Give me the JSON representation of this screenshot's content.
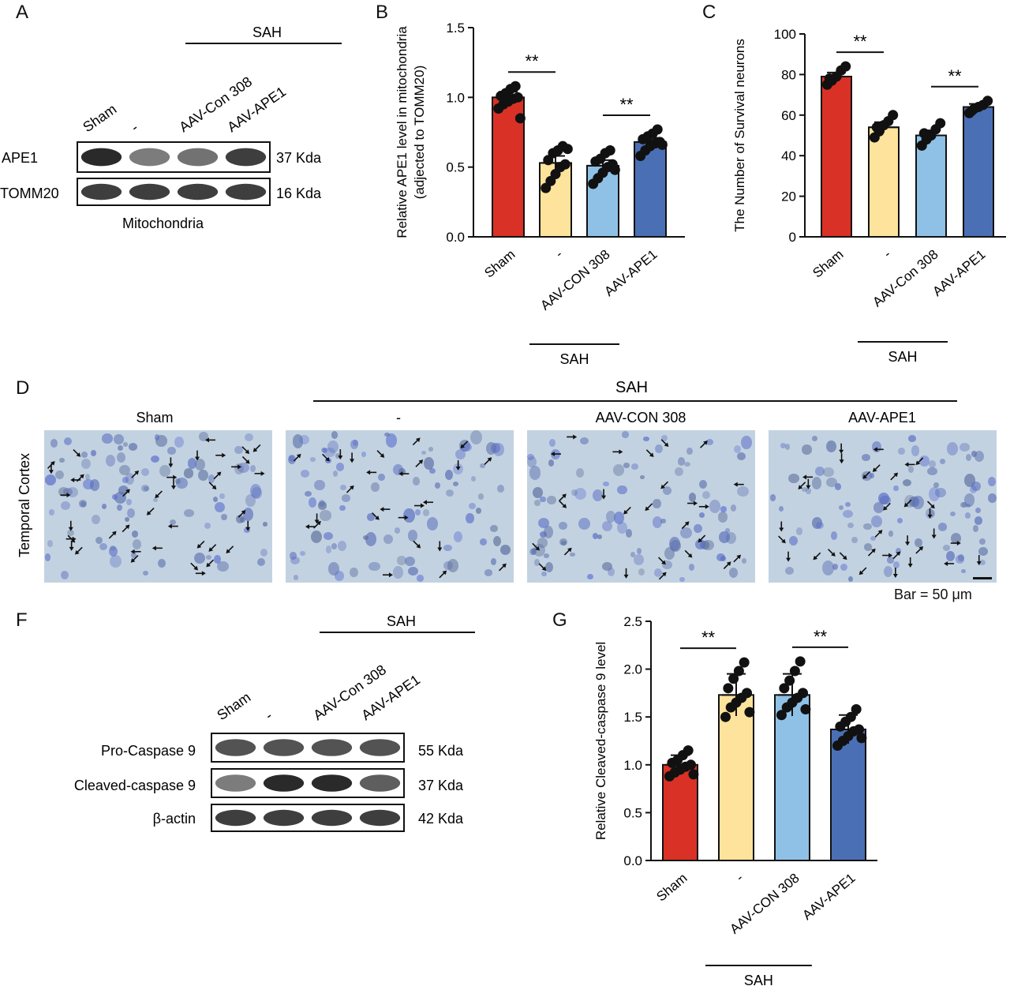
{
  "panels": {
    "A": {
      "letter": "A",
      "sah_label": "SAH",
      "lanes": [
        "Sham",
        "-",
        "AAV-Con 308",
        "AAV-APE1"
      ],
      "bands": [
        {
          "protein": "APE1",
          "size": "37 Kda",
          "intensity": [
            0.95,
            0.55,
            0.6,
            0.85
          ]
        },
        {
          "protein": "TOMM20",
          "size": "16 Kda",
          "intensity": [
            0.85,
            0.85,
            0.85,
            0.85
          ]
        }
      ],
      "fraction_label": "Mitochondria"
    },
    "D": {
      "letter": "D",
      "sah_label": "SAH",
      "row_label": "Temporal Cortex",
      "columns": [
        "Sham",
        "-",
        "AAV-CON 308",
        "AAV-APE1"
      ],
      "arrow_counts": [
        42,
        26,
        26,
        34
      ],
      "scale_label": "Bar = 50 μm"
    },
    "F": {
      "letter": "F",
      "sah_label": "SAH",
      "lanes": [
        "Sham",
        "-",
        "AAV-Con 308",
        "AAV-APE1"
      ],
      "bands": [
        {
          "protein": "Pro-Caspase 9",
          "size": "55 Kda",
          "intensity": [
            0.75,
            0.75,
            0.75,
            0.75
          ]
        },
        {
          "protein": "Cleaved-caspase 9",
          "size": "37 Kda",
          "intensity": [
            0.55,
            0.95,
            0.95,
            0.7
          ]
        },
        {
          "protein": "β-actin",
          "size": "42 Kda",
          "intensity": [
            0.85,
            0.85,
            0.85,
            0.85
          ]
        }
      ]
    }
  },
  "colors": {
    "sham": "#d93125",
    "vehicle": "#fde39b",
    "con308": "#8fc1e6",
    "ape1": "#4a6fb5",
    "point": "#111111"
  },
  "chart_data": [
    {
      "id": "B",
      "letter": "B",
      "type": "bar",
      "title": "",
      "ylabel_lines": [
        "Relative APE1 level in mitochondria",
        "(adjected to TOMM20)"
      ],
      "xlabel": "",
      "categories": [
        "Sham",
        "-",
        "AAV-CON 308",
        "AAV-APE1"
      ],
      "values": [
        1.0,
        0.53,
        0.51,
        0.68
      ],
      "errors": [
        0.04,
        0.05,
        0.04,
        0.03
      ],
      "points": [
        [
          0.92,
          0.95,
          0.97,
          0.99,
          1.0,
          1.01,
          1.03,
          1.06,
          1.08,
          0.85
        ],
        [
          0.35,
          0.4,
          0.45,
          0.5,
          0.52,
          0.55,
          0.6,
          0.62,
          0.65,
          0.63
        ],
        [
          0.38,
          0.42,
          0.46,
          0.5,
          0.52,
          0.54,
          0.56,
          0.6,
          0.62,
          0.48
        ],
        [
          0.58,
          0.62,
          0.65,
          0.67,
          0.68,
          0.7,
          0.72,
          0.74,
          0.77,
          0.66
        ]
      ],
      "ylim": [
        0.0,
        1.5
      ],
      "yticks": [
        "0.0",
        "0.5",
        "1.0",
        "1.5"
      ],
      "ytick_values": [
        0.0,
        0.5,
        1.0,
        1.5
      ],
      "significance": [
        {
          "from": 0,
          "to": 1,
          "label": "**"
        },
        {
          "from": 2,
          "to": 3,
          "label": "**"
        }
      ],
      "group_label": "SAH",
      "group_span": [
        1,
        2
      ]
    },
    {
      "id": "C",
      "letter": "C",
      "type": "bar",
      "title": "",
      "ylabel_lines": [
        "The Number of Survival neurons"
      ],
      "xlabel": "",
      "categories": [
        "Sham",
        "-",
        "AAV-Con 308",
        "AAV-APE1"
      ],
      "values": [
        79,
        54,
        50,
        64
      ],
      "errors": [
        2,
        2.5,
        2.5,
        1.5
      ],
      "points": [
        [
          75,
          77,
          79,
          82,
          84,
          78
        ],
        [
          49,
          52,
          55,
          57,
          60,
          54
        ],
        [
          45,
          48,
          50,
          53,
          56,
          51
        ],
        [
          61,
          63,
          64,
          65,
          67,
          62
        ]
      ],
      "ylim": [
        0,
        100
      ],
      "yticks": [
        "0",
        "20",
        "40",
        "60",
        "80",
        "100"
      ],
      "ytick_values": [
        0,
        20,
        40,
        60,
        80,
        100
      ],
      "significance": [
        {
          "from": 0,
          "to": 1,
          "label": "**"
        },
        {
          "from": 2,
          "to": 3,
          "label": "**"
        }
      ],
      "group_label": "SAH",
      "group_span": [
        1,
        2
      ]
    },
    {
      "id": "G",
      "letter": "G",
      "type": "bar",
      "title": "",
      "ylabel_lines": [
        "Relative Cleaved-caspase 9 level"
      ],
      "xlabel": "",
      "categories": [
        "Sham",
        "-",
        "AAV-CON 308",
        "AAV-APE1"
      ],
      "values": [
        1.0,
        1.73,
        1.73,
        1.37
      ],
      "errors": [
        0.1,
        0.22,
        0.22,
        0.15
      ],
      "points": [
        [
          0.88,
          0.92,
          0.95,
          0.98,
          1.0,
          1.02,
          1.05,
          1.1,
          1.15,
          0.9
        ],
        [
          1.5,
          1.6,
          1.65,
          1.7,
          1.75,
          1.8,
          1.9,
          1.98,
          2.07,
          1.55
        ],
        [
          1.52,
          1.6,
          1.65,
          1.7,
          1.75,
          1.8,
          1.88,
          1.98,
          2.08,
          1.58
        ],
        [
          1.2,
          1.25,
          1.3,
          1.35,
          1.37,
          1.4,
          1.45,
          1.5,
          1.58,
          1.28
        ]
      ],
      "ylim": [
        0.0,
        2.5
      ],
      "yticks": [
        "0.0",
        "0.5",
        "1.0",
        "1.5",
        "2.0",
        "2.5"
      ],
      "ytick_values": [
        0.0,
        0.5,
        1.0,
        1.5,
        2.0,
        2.5
      ],
      "significance": [
        {
          "from": 0,
          "to": 1,
          "label": "**"
        },
        {
          "from": 2,
          "to": 3,
          "label": "**"
        }
      ],
      "group_label": "SAH",
      "group_span": [
        1,
        2
      ]
    }
  ]
}
